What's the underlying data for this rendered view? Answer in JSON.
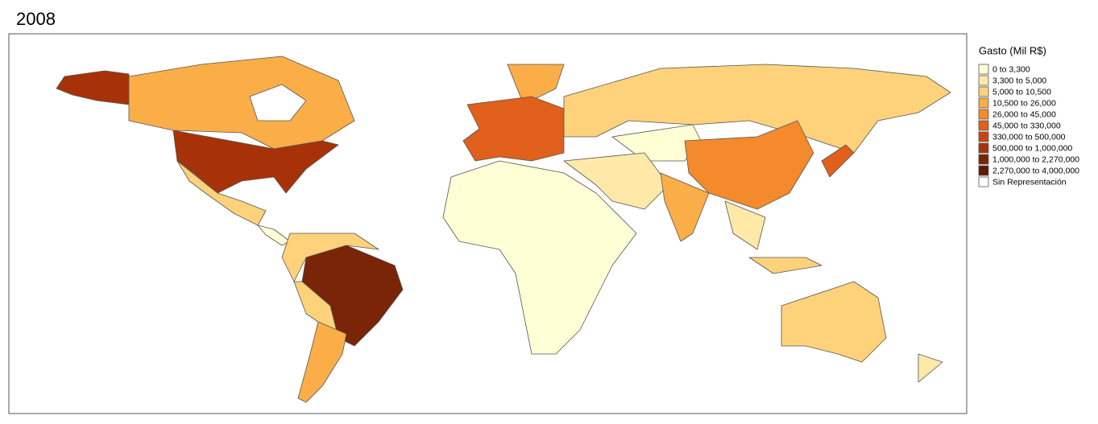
{
  "title": "2008",
  "legend": {
    "title": "Gasto (Mil R$)",
    "items": [
      {
        "label": "0 to 3,300",
        "color": "#ffffd5"
      },
      {
        "label": "3,300 to 5,000",
        "color": "#fee9a8"
      },
      {
        "label": "5,000 to 10,500",
        "color": "#fdd27a"
      },
      {
        "label": "10,500 to 26,000",
        "color": "#fbae48"
      },
      {
        "label": "26,000 to 45,000",
        "color": "#f48a2b"
      },
      {
        "label": "45,000 to 330,000",
        "color": "#e0601c"
      },
      {
        "label": "330,000 to 500,000",
        "color": "#c84512"
      },
      {
        "label": "500,000 to 1,000,000",
        "color": "#a83208"
      },
      {
        "label": "1,000,000 to 2,270,000",
        "color": "#7a2408"
      },
      {
        "label": "2,270,000 to 4,000,000",
        "color": "#5a1a05"
      },
      {
        "label": "Sin Representación",
        "color": "#ffffff"
      }
    ]
  }
}
